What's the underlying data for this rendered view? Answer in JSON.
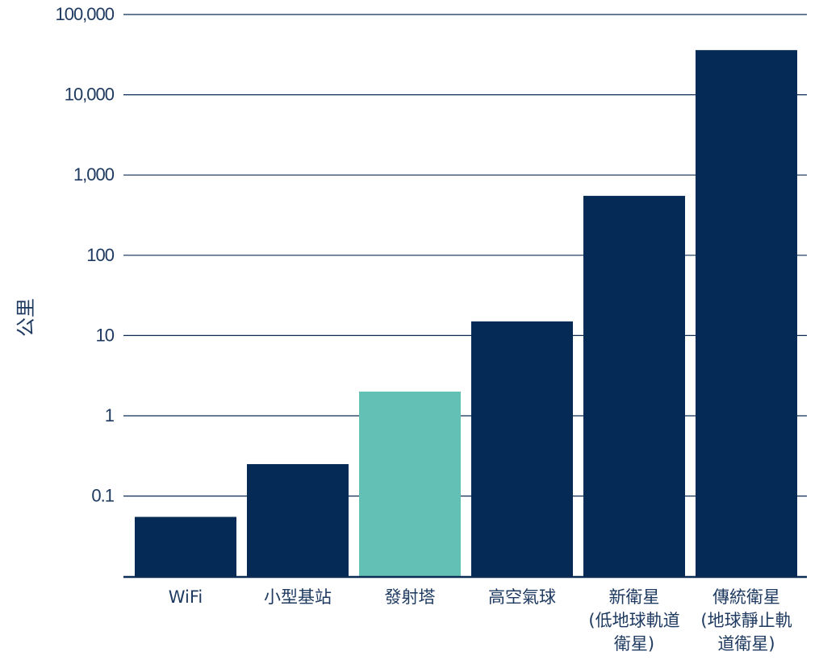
{
  "chart_data": {
    "type": "bar",
    "ylabel": "公里",
    "yscale": "log",
    "ylim": [
      0.01,
      100000
    ],
    "yticks": [
      {
        "value": 0.1,
        "label": "0.1"
      },
      {
        "value": 1,
        "label": "1"
      },
      {
        "value": 10,
        "label": "10"
      },
      {
        "value": 100,
        "label": "100"
      },
      {
        "value": 1000,
        "label": "1,000"
      },
      {
        "value": 10000,
        "label": "10,000"
      },
      {
        "value": 100000,
        "label": "100,000"
      }
    ],
    "categories": [
      {
        "label_lines": [
          "WiFi"
        ],
        "value": 0.055,
        "highlight": false
      },
      {
        "label_lines": [
          "小型基站"
        ],
        "value": 0.25,
        "highlight": false
      },
      {
        "label_lines": [
          "發射塔"
        ],
        "value": 2,
        "highlight": true
      },
      {
        "label_lines": [
          "高空氣球"
        ],
        "value": 15,
        "highlight": false
      },
      {
        "label_lines": [
          "新衛星",
          "(低地球軌道",
          "衛星)"
        ],
        "value": 550,
        "highlight": false
      },
      {
        "label_lines": [
          "傳統衛星",
          "(地球靜止軌",
          "道衛星)"
        ],
        "value": 36000,
        "highlight": false
      }
    ],
    "grid": true,
    "legend": "none",
    "colors": {
      "bar": "#062a56",
      "highlight": "#62c0b4",
      "grid": "#0d2c55",
      "text": "#1e3a60"
    }
  }
}
